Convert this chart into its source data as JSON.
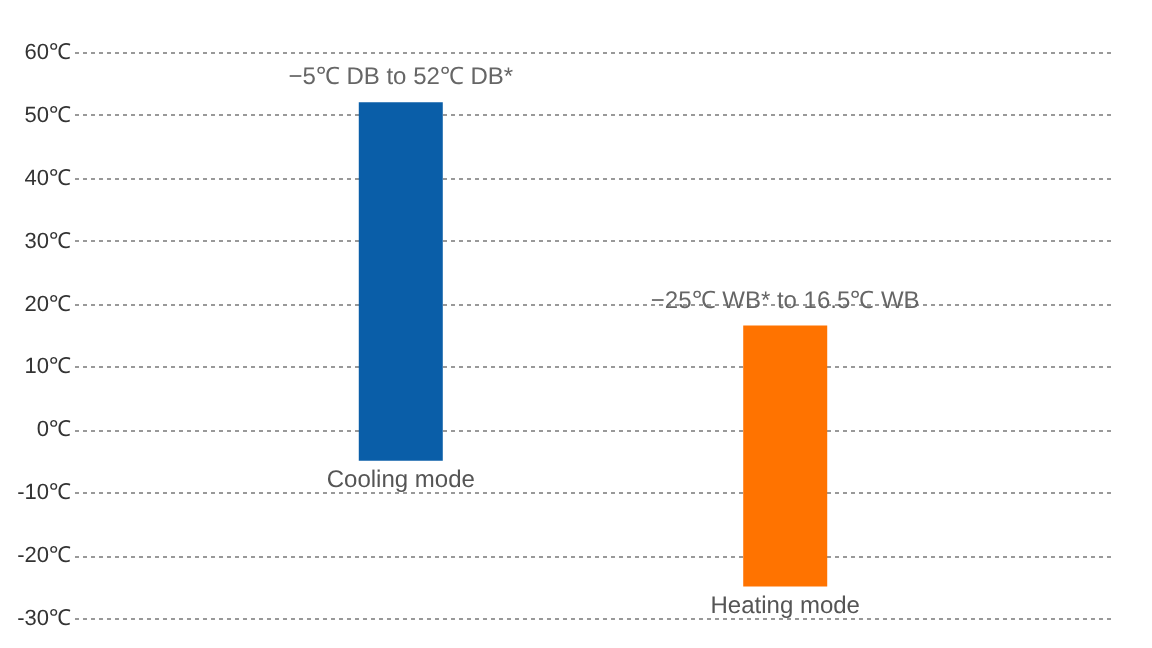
{
  "chart_data": {
    "type": "bar",
    "categories": [
      "Cooling mode",
      "Heating mode"
    ],
    "base": [
      -5,
      -25
    ],
    "values": [
      57,
      41.5
    ],
    "colors": [
      "#0a5ea8",
      "#ff7300"
    ],
    "ylim": [
      -30,
      60
    ],
    "yticks": [
      {
        "value": -30,
        "label": "-30℃"
      },
      {
        "value": -20,
        "label": "-20℃"
      },
      {
        "value": -10,
        "label": "-10℃"
      },
      {
        "value": 0,
        "label": "0℃"
      },
      {
        "value": 10,
        "label": "10℃"
      },
      {
        "value": 20,
        "label": "20℃"
      },
      {
        "value": 30,
        "label": "30℃"
      },
      {
        "value": 40,
        "label": "40℃"
      },
      {
        "value": 50,
        "label": "50℃"
      },
      {
        "value": 60,
        "label": "60℃"
      }
    ],
    "grid": "y",
    "annotations": [
      {
        "text": "−5℃ DB to 52℃ DB*",
        "x": "Cooling mode",
        "y": 52
      },
      {
        "text": "−25℃ WB* to 16.5℃ WB",
        "x": "Heating mode",
        "y": 16.5
      }
    ]
  }
}
